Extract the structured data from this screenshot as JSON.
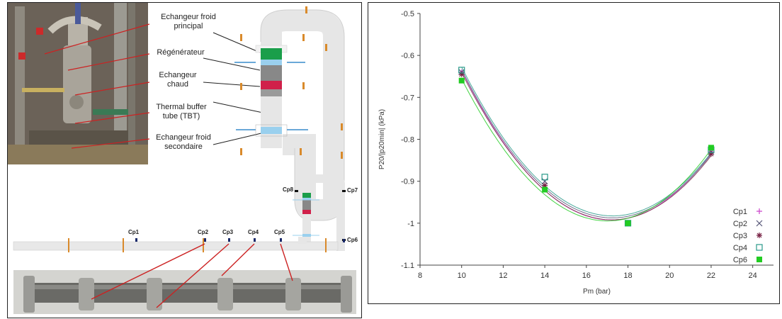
{
  "diagram": {
    "labels": {
      "main_cold_exchanger": [
        "Echangeur froid",
        "principal"
      ],
      "regenerator": "Régénérateur",
      "hot_exchanger": [
        "Echangeur",
        "chaud"
      ],
      "tbt": [
        "Thermal buffer",
        "tube (TBT)"
      ],
      "secondary_cold_exchanger": [
        "Echangeur froid",
        "secondaire"
      ]
    },
    "sensors": [
      "Cp1",
      "Cp2",
      "Cp3",
      "Cp4",
      "Cp5",
      "Cp6",
      "Cp7",
      "Cp8"
    ],
    "colors": {
      "cold": "#1a9e4a",
      "regen": "#888888",
      "hot": "#d0204a",
      "water": "#9ad0ee",
      "tube": "#e6e6e6",
      "flange": "#d98a2b",
      "arrow": "#cc2222"
    }
  },
  "chart_data": {
    "type": "scatter",
    "xlabel": "Pm (bar)",
    "ylabel": "P20/|p20min| (kPa)",
    "xlim": [
      8,
      25
    ],
    "ylim": [
      -1.1,
      -0.5
    ],
    "xticks": [
      8,
      10,
      12,
      14,
      16,
      18,
      20,
      22,
      24
    ],
    "yticks": [
      -0.5,
      -0.6,
      -0.7,
      -0.8,
      -0.9,
      -1,
      -1.1
    ],
    "legend_position": "bottom-right",
    "series": [
      {
        "name": "Cp1",
        "marker": "plus",
        "color": "#cc44cc",
        "x": [
          10,
          14,
          18,
          22
        ],
        "y": [
          -0.64,
          -0.91,
          -1.0,
          -0.83
        ]
      },
      {
        "name": "Cp2",
        "marker": "cross",
        "color": "#555577",
        "x": [
          10,
          14,
          18,
          22
        ],
        "y": [
          -0.64,
          -0.9,
          -1.0,
          -0.83
        ]
      },
      {
        "name": "Cp3",
        "marker": "star",
        "color": "#772244",
        "x": [
          10,
          14,
          18,
          22
        ],
        "y": [
          -0.645,
          -0.91,
          -1.0,
          -0.835
        ]
      },
      {
        "name": "Cp4",
        "marker": "square-open",
        "color": "#2a9a8a",
        "x": [
          10,
          14,
          18,
          22
        ],
        "y": [
          -0.635,
          -0.89,
          -1.0,
          -0.825
        ]
      },
      {
        "name": "Cp6",
        "marker": "square-filled",
        "color": "#22cc22",
        "x": [
          10,
          14,
          18,
          22
        ],
        "y": [
          -0.66,
          -0.92,
          -1.0,
          -0.82
        ]
      }
    ]
  }
}
